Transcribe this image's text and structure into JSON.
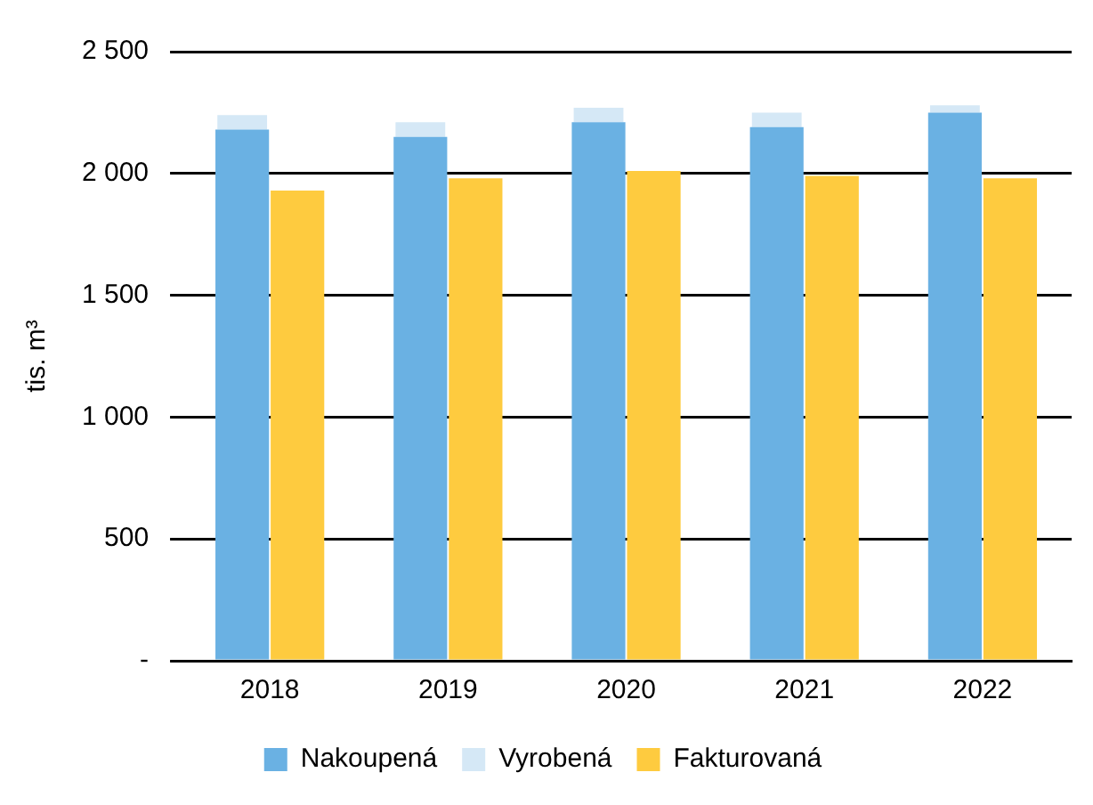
{
  "chart_data": {
    "type": "bar",
    "ylabel": "tis. m³",
    "categories": [
      "2018",
      "2019",
      "2020",
      "2021",
      "2022"
    ],
    "series": [
      {
        "name": "Nakoupená",
        "color": "#6ab1e3",
        "values": [
          2180,
          2150,
          2210,
          2190,
          2250
        ]
      },
      {
        "name": "Vyrobená",
        "color": "#d5e8f6",
        "base": [
          2180,
          2150,
          2210,
          2190,
          2250
        ],
        "values": [
          60,
          60,
          60,
          60,
          30
        ]
      },
      {
        "name": "Fakturovaná",
        "color": "#fecb3f",
        "values": [
          1930,
          1980,
          2010,
          1990,
          1980
        ]
      }
    ],
    "ylim": [
      0,
      2500
    ],
    "yticks": [
      {
        "value": 0,
        "label": "-"
      },
      500,
      {
        "value": 1000,
        "label": "1 000"
      },
      {
        "value": 1500,
        "label": "1 500"
      },
      {
        "value": 2000,
        "label": "2 000"
      },
      {
        "value": 2500,
        "label": "2 500"
      }
    ],
    "grid": "y",
    "legend": "bottom"
  }
}
